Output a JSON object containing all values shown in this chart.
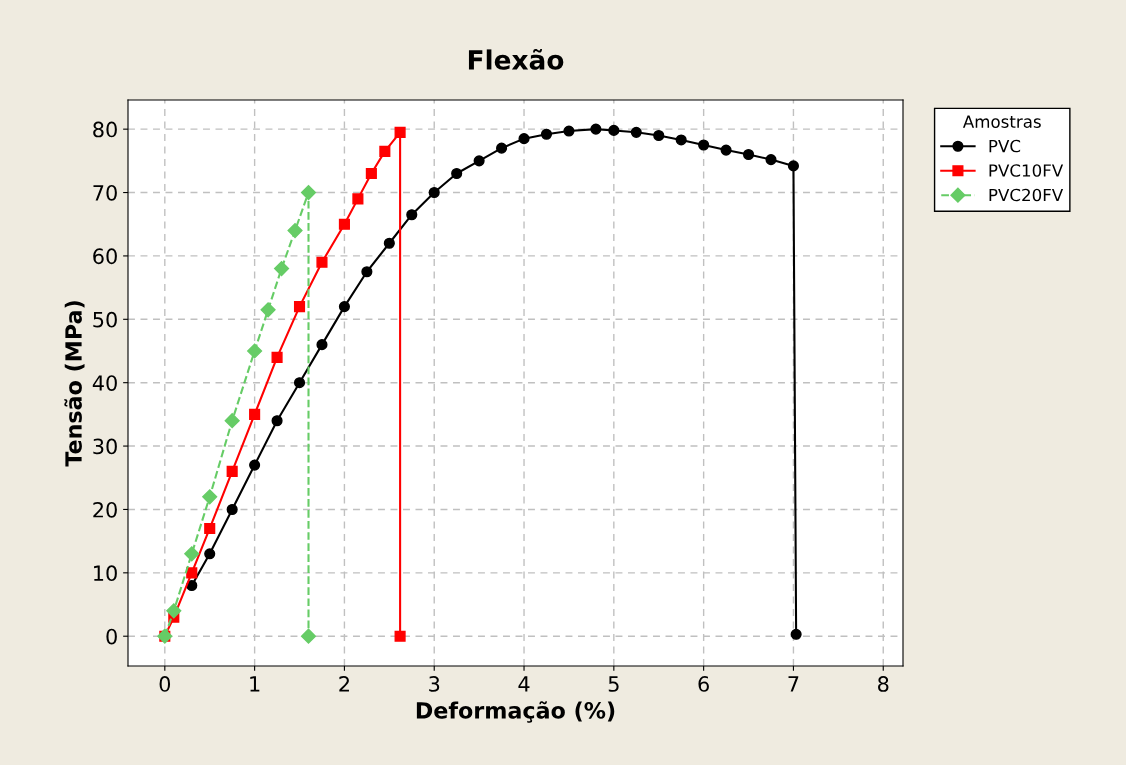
{
  "chart_data": {
    "type": "line",
    "title": "Flexão",
    "xlabel": "Deformação (%)",
    "ylabel": "Tensão (MPa)",
    "legend_title": "Amostras",
    "legend": "right",
    "grid": true,
    "xlim": [
      -0.41,
      8.22
    ],
    "ylim": [
      -4.7,
      84.6
    ],
    "xticks": [
      0,
      1,
      2,
      3,
      4,
      5,
      6,
      7,
      8
    ],
    "yticks": [
      0,
      10,
      20,
      30,
      40,
      50,
      60,
      70,
      80
    ],
    "series": [
      {
        "name": "PVC",
        "color": "#000000",
        "marker": "circle",
        "line_style": "solid",
        "x": [
          0.3,
          0.5,
          0.75,
          1,
          1.25,
          1.5,
          1.75,
          2,
          2.25,
          2.5,
          2.75,
          3,
          3.25,
          3.5,
          3.75,
          4,
          4.25,
          4.5,
          4.8,
          5,
          5.25,
          5.5,
          5.75,
          6,
          6.25,
          6.5,
          6.75,
          7,
          7.03
        ],
        "values": [
          8,
          13,
          20,
          27,
          34,
          40,
          46,
          52,
          57.5,
          62,
          66.5,
          70,
          73,
          75,
          77,
          78.5,
          79.2,
          79.7,
          80,
          79.8,
          79.5,
          79,
          78.3,
          77.5,
          76.7,
          76,
          75.2,
          74.2,
          0.3
        ]
      },
      {
        "name": "PVC10FV",
        "color": "#ff0000",
        "marker": "square",
        "line_style": "solid",
        "x": [
          0,
          0.1,
          0.3,
          0.5,
          0.75,
          1,
          1.25,
          1.5,
          1.75,
          2,
          2.15,
          2.3,
          2.45,
          2.62,
          2.62
        ],
        "values": [
          0,
          3,
          10,
          17,
          26,
          35,
          44,
          52,
          59,
          65,
          69,
          73,
          76.5,
          79.5,
          0
        ]
      },
      {
        "name": "PVC20FV",
        "color": "#66cc66",
        "marker": "diamond",
        "line_style": "dashed",
        "x": [
          0,
          0.1,
          0.3,
          0.5,
          0.75,
          1,
          1.15,
          1.3,
          1.45,
          1.6,
          1.6
        ],
        "values": [
          0,
          4,
          13,
          22,
          34,
          45,
          51.5,
          58,
          64,
          70,
          0
        ]
      }
    ]
  }
}
